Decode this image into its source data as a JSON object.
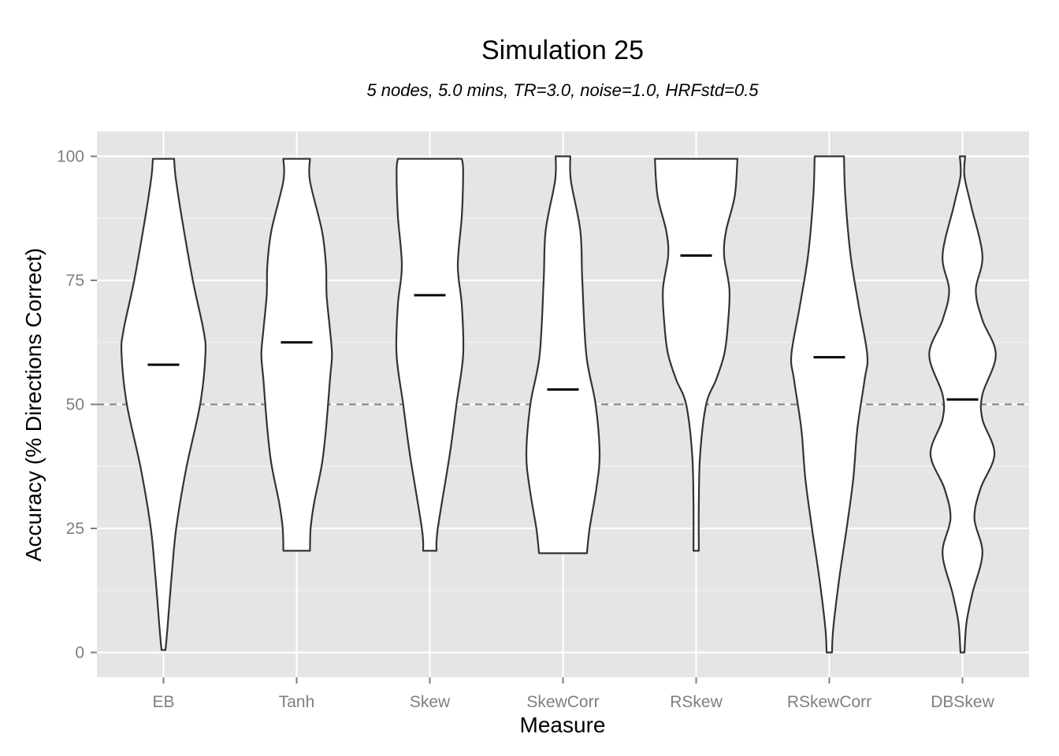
{
  "chart_data": {
    "type": "violin",
    "title": "Simulation 25",
    "subtitle": "5 nodes, 5.0 mins, TR=3.0, noise=1.0, HRFstd=0.5",
    "xlabel": "Measure",
    "ylabel": "Accuracy (% Directions Correct)",
    "ylim": [
      -5,
      105
    ],
    "yticks": [
      0,
      25,
      50,
      75,
      100
    ],
    "grid": true,
    "reference_line": 50,
    "categories": [
      "EB",
      "Tanh",
      "Skew",
      "SkewCorr",
      "RSkew",
      "RSkewCorr",
      "DBSkew"
    ],
    "series": [
      {
        "category": "EB",
        "median": 58,
        "range": [
          0.5,
          99.5
        ],
        "density": [
          [
            0.5,
            0.03
          ],
          [
            5,
            0.06
          ],
          [
            15,
            0.12
          ],
          [
            25,
            0.19
          ],
          [
            37,
            0.34
          ],
          [
            50,
            0.55
          ],
          [
            60,
            0.63
          ],
          [
            65,
            0.6
          ],
          [
            75,
            0.44
          ],
          [
            88,
            0.27
          ],
          [
            96,
            0.18
          ],
          [
            99.5,
            0.16
          ]
        ]
      },
      {
        "category": "Tanh",
        "median": 62.5,
        "range": [
          20.5,
          99.5
        ],
        "density": [
          [
            20.5,
            0.2
          ],
          [
            25,
            0.21
          ],
          [
            30,
            0.26
          ],
          [
            38,
            0.38
          ],
          [
            45,
            0.44
          ],
          [
            55,
            0.5
          ],
          [
            60,
            0.53
          ],
          [
            65,
            0.5
          ],
          [
            72,
            0.45
          ],
          [
            78,
            0.44
          ],
          [
            85,
            0.38
          ],
          [
            95,
            0.2
          ],
          [
            99.5,
            0.2
          ]
        ]
      },
      {
        "category": "Skew",
        "median": 72,
        "range": [
          20.5,
          99.5
        ],
        "density": [
          [
            20.5,
            0.1
          ],
          [
            25,
            0.12
          ],
          [
            40,
            0.3
          ],
          [
            50,
            0.4
          ],
          [
            60,
            0.5
          ],
          [
            70,
            0.48
          ],
          [
            78,
            0.42
          ],
          [
            88,
            0.48
          ],
          [
            97,
            0.5
          ],
          [
            99.5,
            0.48
          ]
        ]
      },
      {
        "category": "SkewCorr",
        "median": 53,
        "range": [
          20,
          100
        ],
        "density": [
          [
            20,
            0.36
          ],
          [
            25,
            0.4
          ],
          [
            33,
            0.5
          ],
          [
            40,
            0.55
          ],
          [
            50,
            0.49
          ],
          [
            60,
            0.35
          ],
          [
            75,
            0.29
          ],
          [
            85,
            0.26
          ],
          [
            95,
            0.12
          ],
          [
            100,
            0.11
          ]
        ]
      },
      {
        "category": "RSkew",
        "median": 80,
        "range": [
          20.5,
          99.5
        ],
        "density": [
          [
            20.5,
            0.04
          ],
          [
            30,
            0.04
          ],
          [
            40,
            0.06
          ],
          [
            50,
            0.15
          ],
          [
            55,
            0.3
          ],
          [
            60,
            0.42
          ],
          [
            65,
            0.47
          ],
          [
            73,
            0.5
          ],
          [
            80,
            0.42
          ],
          [
            85,
            0.45
          ],
          [
            92,
            0.58
          ],
          [
            99.5,
            0.62
          ]
        ]
      },
      {
        "category": "RSkewCorr",
        "median": 59.5,
        "range": [
          0,
          100
        ],
        "density": [
          [
            0,
            0.04
          ],
          [
            5,
            0.06
          ],
          [
            15,
            0.15
          ],
          [
            25,
            0.26
          ],
          [
            35,
            0.36
          ],
          [
            45,
            0.42
          ],
          [
            55,
            0.53
          ],
          [
            60,
            0.57
          ],
          [
            70,
            0.44
          ],
          [
            80,
            0.32
          ],
          [
            92,
            0.24
          ],
          [
            100,
            0.22
          ]
        ]
      },
      {
        "category": "DBSkew",
        "median": 51,
        "range": [
          0,
          100
        ],
        "density": [
          [
            0,
            0.03
          ],
          [
            6,
            0.06
          ],
          [
            12,
            0.15
          ],
          [
            20,
            0.3
          ],
          [
            27,
            0.18
          ],
          [
            33,
            0.27
          ],
          [
            40,
            0.48
          ],
          [
            47,
            0.3
          ],
          [
            52,
            0.3
          ],
          [
            60,
            0.5
          ],
          [
            67,
            0.3
          ],
          [
            73,
            0.2
          ],
          [
            80,
            0.3
          ],
          [
            90,
            0.13
          ],
          [
            96,
            0.03
          ],
          [
            100,
            0.04
          ]
        ]
      }
    ]
  }
}
